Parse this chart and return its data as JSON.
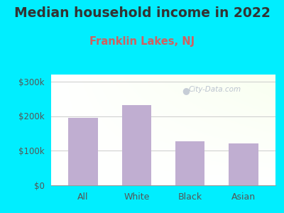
{
  "title": "Median household income in 2022",
  "subtitle": "Franklin Lakes, NJ",
  "categories": [
    "All",
    "White",
    "Black",
    "Asian"
  ],
  "values": [
    195000,
    232000,
    128000,
    122000
  ],
  "bar_color": "#c0aed1",
  "title_fontsize": 13.5,
  "subtitle_fontsize": 10.5,
  "subtitle_color": "#d06060",
  "title_color": "#333333",
  "background_outer": "#00eeff",
  "ylim": [
    0,
    320000
  ],
  "yticks": [
    0,
    100000,
    200000,
    300000
  ],
  "ytick_labels": [
    "$0",
    "$100k",
    "$200k",
    "$300k"
  ],
  "watermark": "City-Data.com",
  "grid_color": "#cccccc",
  "tick_color": "#555555",
  "spine_color": "#999999"
}
